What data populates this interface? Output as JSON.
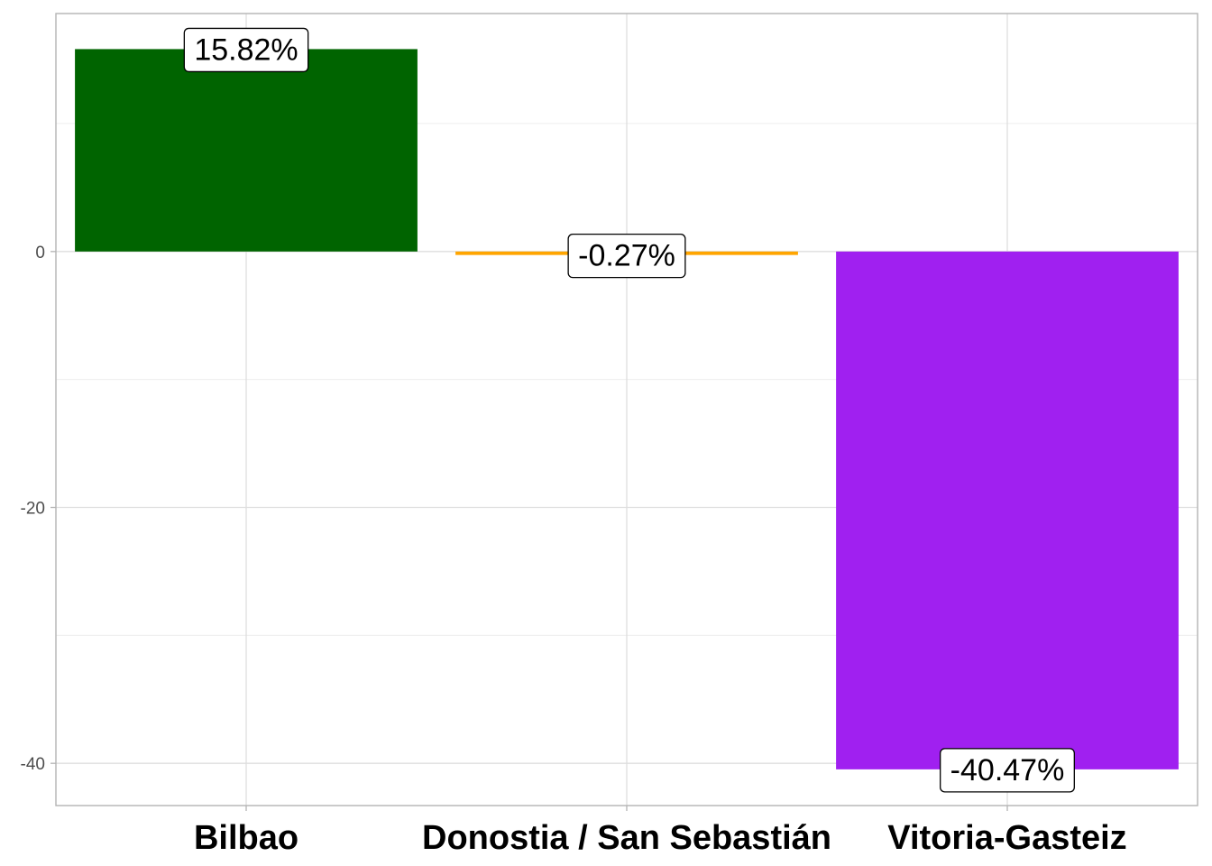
{
  "chart_data": {
    "type": "bar",
    "categories": [
      "Bilbao",
      "Donostia / San Sebastián",
      "Vitoria-Gasteiz"
    ],
    "values": [
      15.82,
      -0.27,
      -40.47
    ],
    "data_labels": [
      "15.82%",
      "-0.27%",
      "-40.47%"
    ],
    "colors": [
      "#006400",
      "#FFA500",
      "#A020F0"
    ],
    "title": "",
    "xlabel": "",
    "ylabel": "",
    "ylim": [
      -43.3,
      18.6
    ],
    "yticks": [
      0,
      -20,
      -40
    ],
    "ytick_labels": [
      "0",
      "-20",
      "-40"
    ],
    "grid": true,
    "legend": "none"
  }
}
